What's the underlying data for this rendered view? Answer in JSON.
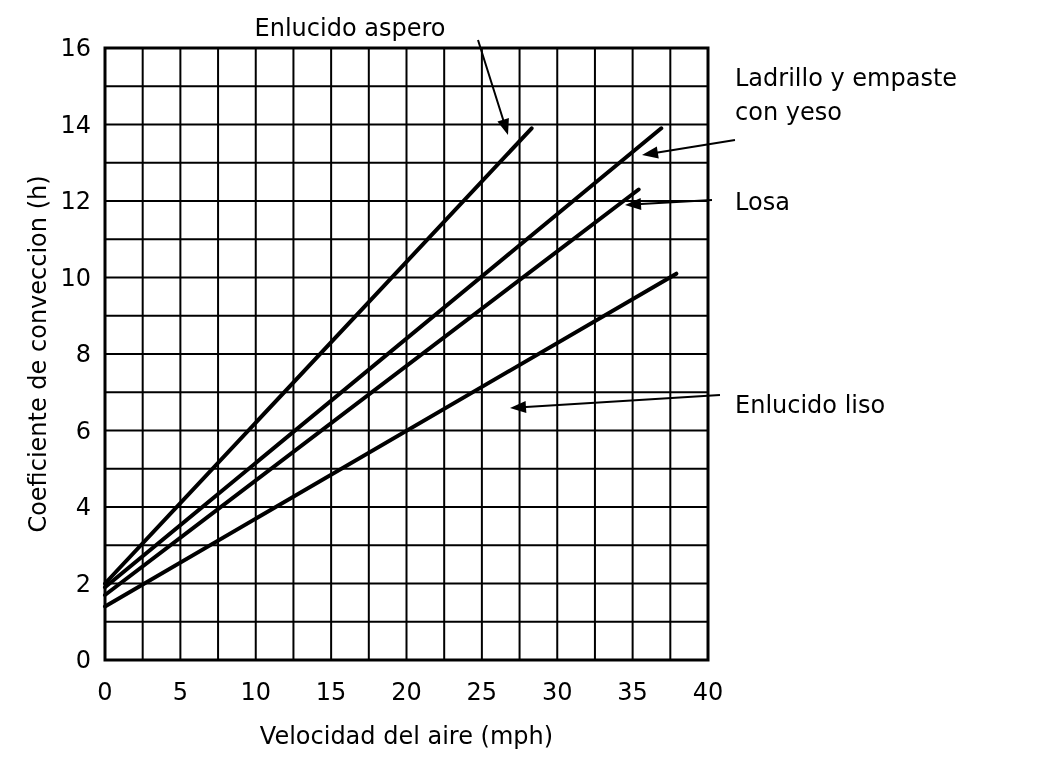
{
  "chart_data": {
    "type": "line",
    "xlabel": "Velocidad del aire (mph)",
    "ylabel": "Coeficiente de conveccion (h)",
    "xlim": [
      0,
      40
    ],
    "ylim": [
      0,
      16
    ],
    "xticks": [
      0,
      {
        "value": 2.5,
        "label": null
      },
      5,
      {
        "value": 7.5,
        "label": null
      },
      10,
      {
        "value": 12.5,
        "label": null
      },
      15,
      {
        "value": 17.5,
        "label": null
      },
      20,
      {
        "value": 22.5,
        "label": null
      },
      25,
      {
        "value": 27.5,
        "label": null
      },
      30,
      {
        "value": 32.5,
        "label": null
      },
      35,
      {
        "value": 37.5,
        "label": null
      },
      40
    ],
    "yticks": [
      0,
      {
        "value": 1,
        "label": null
      },
      2,
      {
        "value": 3,
        "label": null
      },
      4,
      {
        "value": 5,
        "label": null
      },
      6,
      {
        "value": 7,
        "label": null
      },
      8,
      {
        "value": 9,
        "label": null
      },
      10,
      {
        "value": 11,
        "label": null
      },
      12,
      {
        "value": 13,
        "label": null
      },
      14,
      {
        "value": 15,
        "label": null
      },
      16
    ],
    "grid": true,
    "line_style": "solid",
    "series": [
      {
        "color": "#000000",
        "x": [
          0,
          28.3
        ],
        "values": [
          2.0,
          13.9
        ]
      },
      {
        "color": "#000000",
        "x": [
          0,
          36.9
        ],
        "values": [
          1.9,
          13.9
        ]
      },
      {
        "color": "#000000",
        "x": [
          0,
          35.4
        ],
        "values": [
          1.7,
          12.3
        ]
      },
      {
        "color": "#000000",
        "x": [
          0,
          37.9
        ],
        "values": [
          1.4,
          10.1
        ]
      }
    ],
    "annotations": [
      "Enlucido aspero",
      "Ladrillo y empaste\ncon yeso",
      "Losa",
      "Enlucido liso"
    ]
  }
}
